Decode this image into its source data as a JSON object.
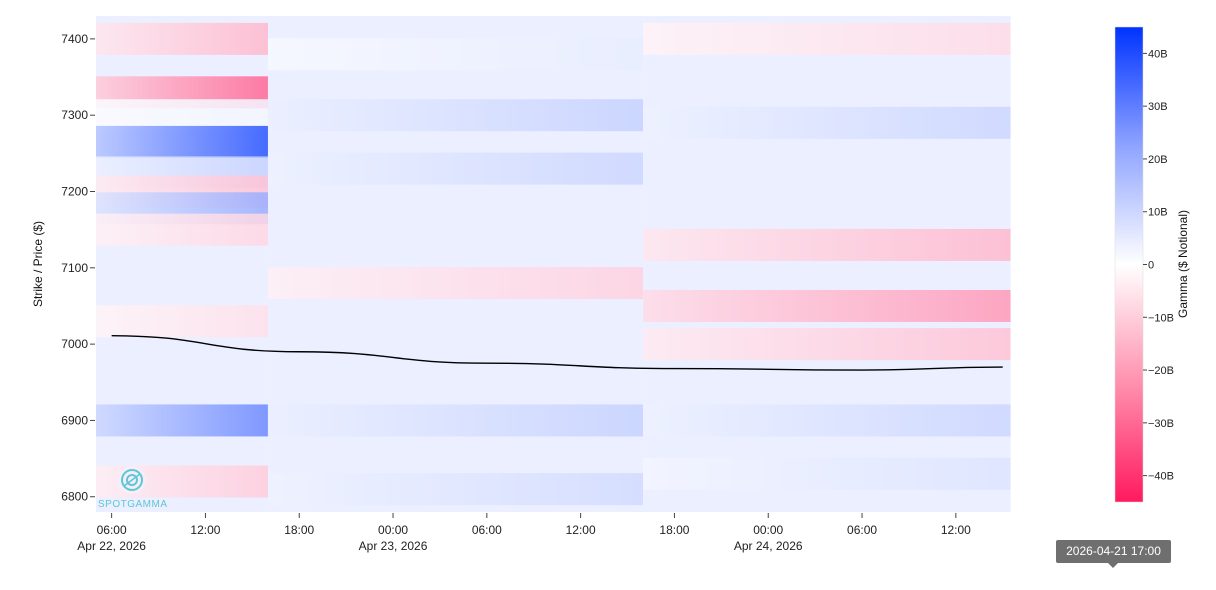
{
  "chart_data": {
    "type": "heatmap",
    "ylabel": "Strike / Price ($)",
    "colorbar_label": "Gamma ($ Notional)",
    "xlim": [
      "2026-04-22 05:00",
      "2026-04-24 17:00"
    ],
    "ylim": [
      6780,
      7430
    ],
    "grid": false,
    "x_ticks": [
      {
        "value": "2026-04-22 06:00",
        "label": "06:00",
        "sublabel": "Apr 22, 2026"
      },
      {
        "value": "2026-04-22 12:00",
        "label": "12:00",
        "sublabel": ""
      },
      {
        "value": "2026-04-22 18:00",
        "label": "18:00",
        "sublabel": ""
      },
      {
        "value": "2026-04-23 00:00",
        "label": "00:00",
        "sublabel": "Apr 23, 2026"
      },
      {
        "value": "2026-04-23 06:00",
        "label": "06:00",
        "sublabel": ""
      },
      {
        "value": "2026-04-23 12:00",
        "label": "12:00",
        "sublabel": ""
      },
      {
        "value": "2026-04-23 18:00",
        "label": "18:00",
        "sublabel": ""
      },
      {
        "value": "2026-04-24 00:00",
        "label": "00:00",
        "sublabel": "Apr 24, 2026"
      },
      {
        "value": "2026-04-24 06:00",
        "label": "06:00",
        "sublabel": ""
      },
      {
        "value": "2026-04-24 12:00",
        "label": "12:00",
        "sublabel": ""
      }
    ],
    "y_ticks": [
      6800,
      6900,
      7000,
      7100,
      7200,
      7300,
      7400
    ],
    "colorscale": {
      "min_color": "#ff1a5e",
      "mid_color": "#ffffff",
      "max_color": "#0033ff",
      "range": [
        -45,
        45
      ],
      "ticks": [
        {
          "value": 40,
          "label": "40B"
        },
        {
          "value": 30,
          "label": "30B"
        },
        {
          "value": 20,
          "label": "20B"
        },
        {
          "value": 10,
          "label": "10B"
        },
        {
          "value": 0,
          "label": "0"
        },
        {
          "value": -10,
          "label": "−10B"
        },
        {
          "value": -20,
          "label": "−20B"
        },
        {
          "value": -30,
          "label": "−30B"
        },
        {
          "value": -40,
          "label": "−40B"
        }
      ]
    },
    "sessions": [
      {
        "start": "2026-04-22 05:00",
        "end": "2026-04-22 16:00",
        "features": [
          {
            "strike": 7400,
            "value": -14
          },
          {
            "strike": 7330,
            "value": -30
          },
          {
            "strike": 7300,
            "value": 2
          },
          {
            "strike": 7265,
            "value": 38
          },
          {
            "strike": 7225,
            "value": 10
          },
          {
            "strike": 7200,
            "value": -12
          },
          {
            "strike": 7178,
            "value": 18
          },
          {
            "strike": 7150,
            "value": -8
          },
          {
            "strike": 7030,
            "value": -6
          },
          {
            "strike": 6900,
            "value": 26
          },
          {
            "strike": 6820,
            "value": -10
          }
        ]
      },
      {
        "start": "2026-04-22 16:00",
        "end": "2026-04-23 16:00",
        "features": [
          {
            "strike": 7380,
            "value": 4
          },
          {
            "strike": 7300,
            "value": 10
          },
          {
            "strike": 7230,
            "value": 9
          },
          {
            "strike": 7080,
            "value": -9
          },
          {
            "strike": 6900,
            "value": 10
          },
          {
            "strike": 6810,
            "value": 8
          }
        ]
      },
      {
        "start": "2026-04-23 16:00",
        "end": "2026-04-24 15:30",
        "features": [
          {
            "strike": 7400,
            "value": -7
          },
          {
            "strike": 7290,
            "value": 9
          },
          {
            "strike": 7130,
            "value": -14
          },
          {
            "strike": 7050,
            "value": -20
          },
          {
            "strike": 7000,
            "value": -12
          },
          {
            "strike": 6900,
            "value": 9
          },
          {
            "strike": 6830,
            "value": 6
          }
        ]
      }
    ],
    "series": [
      {
        "type": "line",
        "color": "#000000",
        "x": [
          "2026-04-22 06:00",
          "2026-04-22 18:00",
          "2026-04-23 06:00",
          "2026-04-23 18:00",
          "2026-04-24 06:00",
          "2026-04-24 15:00"
        ],
        "y": [
          7011,
          6990,
          6975,
          6968,
          6966,
          6970
        ]
      }
    ]
  },
  "logo": {
    "text": "SPOTGAMMA"
  },
  "tooltip": {
    "text": "2026-04-21 17:00"
  }
}
